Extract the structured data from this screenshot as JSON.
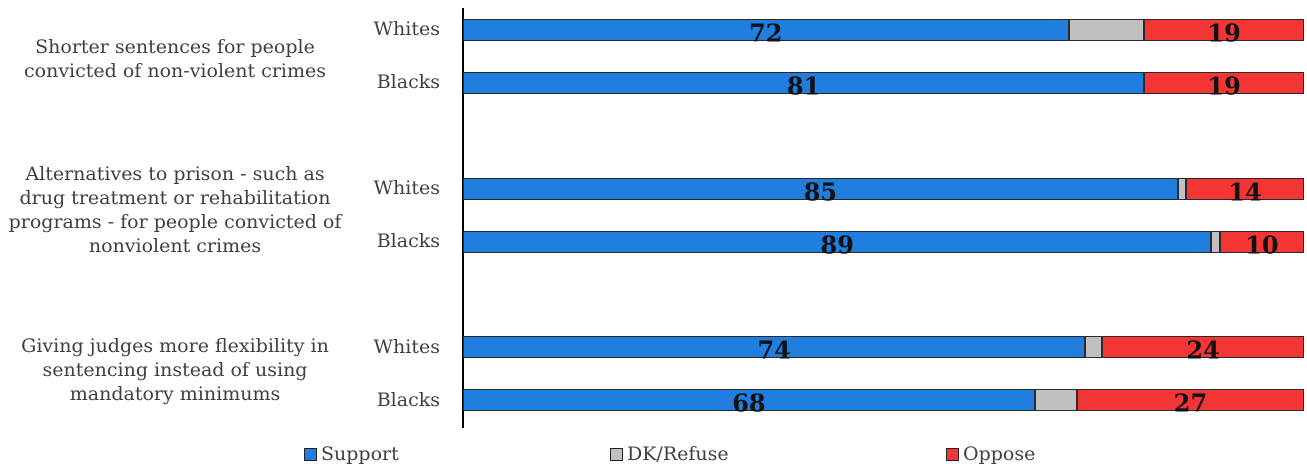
{
  "chart_data": {
    "type": "bar",
    "orientation": "horizontal",
    "stacked": true,
    "legend_position": "bottom",
    "groups": [
      {
        "label": "Shorter sentences for people convicted of non-violent crimes",
        "rows": [
          {
            "label": "Whites",
            "support": 72,
            "dk": 8,
            "oppose": 19
          },
          {
            "label": "Blacks",
            "support": 81,
            "dk": 0,
            "oppose": 19
          }
        ]
      },
      {
        "label": "Alternatives to prison - such as drug treatment or rehabilitation programs - for people convicted of nonviolent crimes",
        "rows": [
          {
            "label": "Whites",
            "support": 85,
            "dk": 1,
            "oppose": 14
          },
          {
            "label": "Blacks",
            "support": 89,
            "dk": 1,
            "oppose": 10
          }
        ]
      },
      {
        "label": "Giving judges more flexibility in sentencing instead of using mandatory minimums",
        "rows": [
          {
            "label": "Whites",
            "support": 74,
            "dk": 2,
            "oppose": 24
          },
          {
            "label": "Blacks",
            "support": 68,
            "dk": 5,
            "oppose": 27
          }
        ]
      }
    ],
    "series": [
      {
        "key": "support",
        "name": "Support",
        "color": "#1f7ede",
        "labeled": true
      },
      {
        "key": "dk",
        "name": "DK/Refuse",
        "color": "#c0c0c0",
        "labeled": false
      },
      {
        "key": "oppose",
        "name": "Oppose",
        "color": "#f43535",
        "labeled": true
      }
    ]
  }
}
